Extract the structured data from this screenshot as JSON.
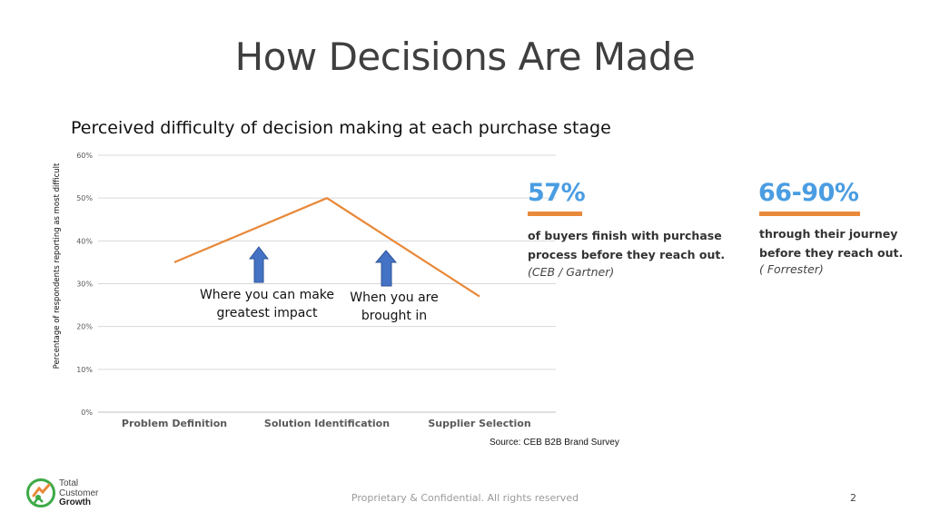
{
  "slide": {
    "title": "How Decisions Are Made",
    "footer": "Proprietary & Confidential. All rights reserved",
    "page_number": "2",
    "source_note": "Source: CEB B2B Brand Survey",
    "logo": {
      "line1": "Total",
      "line2": "Customer",
      "line3": "Growth"
    }
  },
  "chart_data": {
    "type": "line",
    "title": "Perceived difficulty of decision making at each purchase stage",
    "xlabel": "",
    "ylabel": "Percentage of respondents reporting as most difficult",
    "categories": [
      "Problem Definition",
      "Solution Identification",
      "Supplier Selection"
    ],
    "series": [
      {
        "values": [
          35,
          50,
          27
        ],
        "color": "#e8893a"
      }
    ],
    "ylim": [
      0,
      60
    ],
    "yticks": [
      0,
      10,
      20,
      30,
      40,
      50,
      60
    ],
    "ytick_labels": [
      "0%",
      "10%",
      "20%",
      "30%",
      "40%",
      "50%",
      "60%"
    ],
    "grid": true,
    "annotations": [
      {
        "text_line1": "Where you can make",
        "text_line2": "greatest impact",
        "arrow": "up",
        "arrow_color": "#4472c4"
      },
      {
        "text_line1": "When you are",
        "text_line2": "brought in",
        "arrow": "up",
        "arrow_color": "#4472c4"
      }
    ]
  },
  "stats": [
    {
      "number": "57%",
      "line1": "of buyers finish with purchase",
      "line2": "process before they reach out.",
      "source": "(CEB / Gartner)"
    },
    {
      "number": "66-90%",
      "line1": "through their journey",
      "line2": "before they reach out.",
      "source": "( Forrester)"
    }
  ]
}
